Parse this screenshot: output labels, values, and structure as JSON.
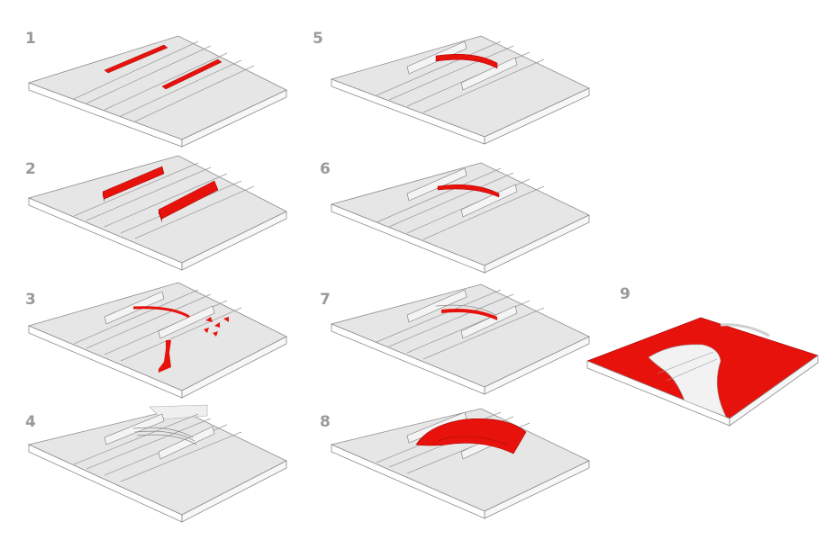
{
  "steps": [
    {
      "label": "1"
    },
    {
      "label": "2"
    },
    {
      "label": "3"
    },
    {
      "label": "4"
    },
    {
      "label": "5"
    },
    {
      "label": "6"
    },
    {
      "label": "7"
    },
    {
      "label": "8"
    },
    {
      "label": "9"
    }
  ],
  "colors": {
    "highlight": "#e8120c",
    "slab_top": "#e6e6e6",
    "slab_side": "#ffffff",
    "outline": "#8a8a8a",
    "label": "#9a9a9a"
  }
}
